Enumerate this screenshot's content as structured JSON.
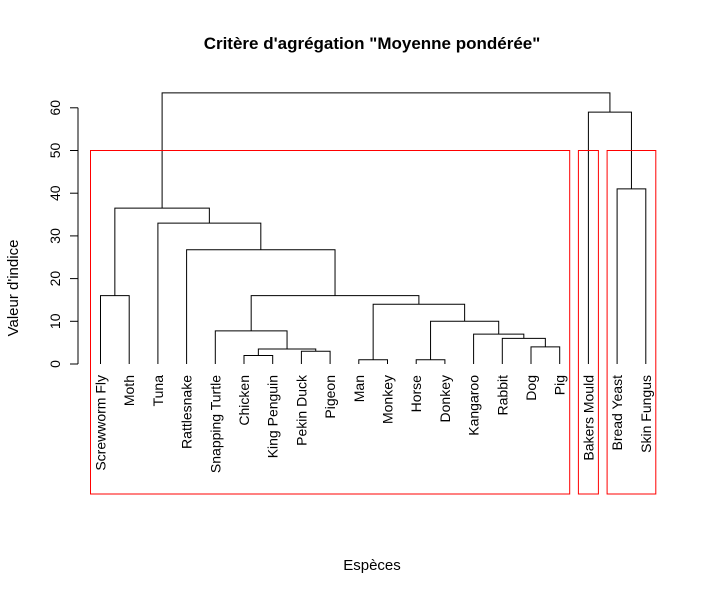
{
  "chart_data": {
    "type": "dendrogram",
    "title": "Critère d'agrégation \"Moyenne pondérée\"",
    "xlabel": "Espèces",
    "ylabel": "Valeur d'indice",
    "ylim": [
      0,
      65
    ],
    "yticks": [
      0,
      10,
      20,
      30,
      40,
      50,
      60
    ],
    "leaves": [
      "Screwworm Fly",
      "Moth",
      "Tuna",
      "Rattlesnake",
      "Snapping Turtle",
      "Chicken",
      "King Penguin",
      "Pekin Duck",
      "Pigeon",
      "Man",
      "Monkey",
      "Horse",
      "Donkey",
      "Kangaroo",
      "Rabbit",
      "Dog",
      "Pig",
      "Bakers Mould",
      "Bread Yeast",
      "Skin Fungus"
    ],
    "merges": [
      {
        "left": "Man",
        "right": "Monkey",
        "height": 1.0
      },
      {
        "left": "Horse",
        "right": "Donkey",
        "height": 1.0
      },
      {
        "left": "Chicken",
        "right": "King Penguin",
        "height": 2.0
      },
      {
        "left": "Pekin Duck",
        "right": "Pigeon",
        "height": 3.0
      },
      {
        "left": "Chicken+King Penguin",
        "right": "Pekin Duck+Pigeon",
        "height": 3.5
      },
      {
        "left": "Dog",
        "right": "Pig",
        "height": 4.0
      },
      {
        "left": "Rabbit",
        "right": "Dog+Pig",
        "height": 6.0
      },
      {
        "left": "Kangaroo",
        "right": "Rabbit+Dog+Pig",
        "height": 7.0
      },
      {
        "left": "Snapping Turtle",
        "right": "birds",
        "height": 7.75
      },
      {
        "left": "Horse+Donkey",
        "right": "Kangaroo..Pig",
        "height": 10.0
      },
      {
        "left": "Man+Monkey",
        "right": "Horse..Pig",
        "height": 14.0
      },
      {
        "left": "Screwworm Fly",
        "right": "Moth",
        "height": 16.0
      },
      {
        "left": "Snapping Turtle..Pigeon",
        "right": "Man..Pig",
        "height": 16.0
      },
      {
        "left": "Rattlesnake",
        "right": "Snapping Turtle..Pig",
        "height": 26.75
      },
      {
        "left": "Tuna",
        "right": "Rattlesnake..Pig",
        "height": 33.0
      },
      {
        "left": "Screwworm Fly+Moth",
        "right": "Tuna..Pig",
        "height": 36.5
      },
      {
        "left": "Bread Yeast",
        "right": "Skin Fungus",
        "height": 41.0
      },
      {
        "left": "Bakers Mould",
        "right": "Bread Yeast+Skin Fungus",
        "height": 59.0
      },
      {
        "left": "animals",
        "right": "fungi",
        "height": 63.5
      }
    ],
    "cluster_boxes": [
      {
        "from": "Screwworm Fly",
        "to": "Pig",
        "top": 50
      },
      {
        "from": "Bakers Mould",
        "to": "Bakers Mould",
        "top": 50
      },
      {
        "from": "Bread Yeast",
        "to": "Skin Fungus",
        "top": 50
      }
    ],
    "colors": {
      "tree": "#000000",
      "boxes": "#ff0000"
    }
  }
}
